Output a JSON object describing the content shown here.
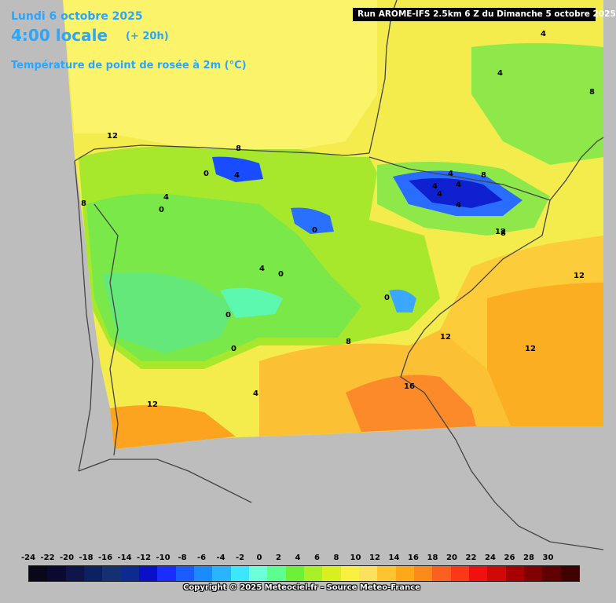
{
  "header": {
    "date": "Lundi 6 octobre 2025",
    "time": "4:00 locale",
    "offset": "(+ 20h)",
    "parameter": "Température de point de rosée à 2m (°C)",
    "run": "Run AROME-IFS 2.5km 6 Z du Dimanche 5 octobre 2025"
  },
  "legend": {
    "ticks": [
      "-24",
      "-22",
      "-20",
      "-18",
      "-16",
      "-14",
      "-12",
      "-10",
      "-8",
      "-6",
      "-4",
      "-2",
      "0",
      "2",
      "4",
      "6",
      "8",
      "10",
      "12",
      "14",
      "16",
      "18",
      "20",
      "22",
      "24",
      "26",
      "28",
      "30"
    ],
    "colors": [
      "#080818",
      "#0a0a30",
      "#0c1448",
      "#0a2060",
      "#143070",
      "#0d2a8f",
      "#0a10c8",
      "#1a2cff",
      "#1a5cff",
      "#1a8aff",
      "#2ab4ff",
      "#3ce6ff",
      "#6cffd8",
      "#5cff90",
      "#6ef03a",
      "#a8f028",
      "#d8f020",
      "#f8f040",
      "#fce060",
      "#fcc430",
      "#fca818",
      "#fc8a18",
      "#fc6020",
      "#fc3818",
      "#f01010",
      "#d00808",
      "#a80000",
      "#800000",
      "#600000",
      "#400000"
    ]
  },
  "copyright": "Copyright © 2025 Meteociel.fr - Source Meteo-France",
  "map_labels": [
    "12",
    "8",
    "8",
    "0",
    "4",
    "4",
    "0",
    "4",
    "4",
    "4",
    "4",
    "8",
    "0",
    "4",
    "0",
    "4",
    "8",
    "0",
    "0",
    "12",
    "0",
    "8",
    "12",
    "12",
    "4",
    "16",
    "12",
    "12",
    "4",
    "4",
    "8"
  ]
}
